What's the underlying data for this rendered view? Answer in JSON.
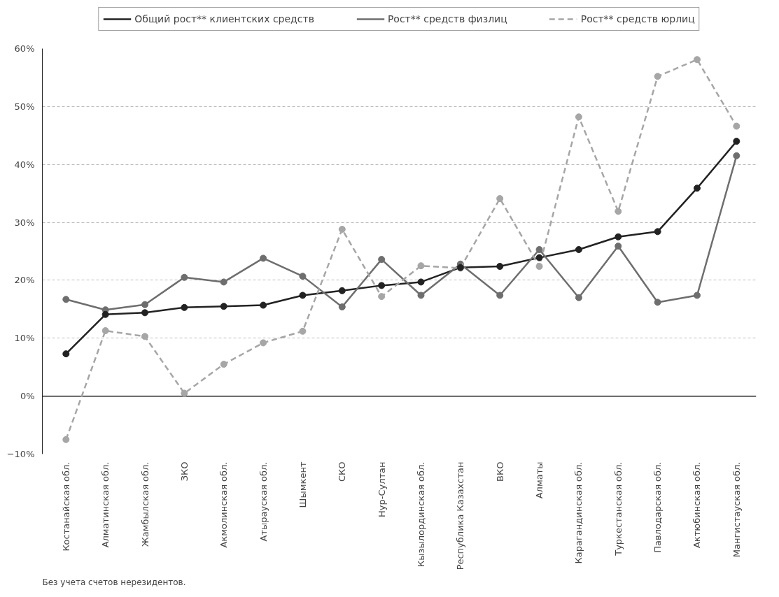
{
  "chart_data": {
    "type": "line",
    "categories": [
      "Костанайская обл.",
      "Алматинская обл.",
      "Жамбылская обл.",
      "ЗКО",
      "Акмолинская обл.",
      "Атырауская обл.",
      "Шымкент",
      "СКО",
      "Нур-Султан",
      "Кызылординская обл.",
      "Республика Казахстан",
      "ВКО",
      "Алматы",
      "Карагандинская обл.",
      "Туркестанская обл.",
      "Павлодарская обл.",
      "Актюбинская обл.",
      "Мангистауская обл."
    ],
    "series": [
      {
        "name": "Общий рост** клиентских средств",
        "color": "#222222",
        "line_style": "solid",
        "values": [
          7.3,
          14.1,
          14.4,
          15.3,
          15.5,
          15.7,
          17.4,
          18.2,
          19.1,
          19.7,
          22.2,
          22.4,
          23.9,
          25.3,
          27.5,
          28.4,
          35.9,
          44.0
        ]
      },
      {
        "name": "Рост** средств физлиц",
        "color": "#6e6e6e",
        "line_style": "solid",
        "values": [
          16.7,
          14.9,
          15.8,
          20.5,
          19.7,
          23.8,
          20.7,
          15.4,
          23.6,
          17.4,
          22.8,
          17.4,
          25.3,
          17.0,
          25.9,
          16.2,
          17.4,
          41.5
        ]
      },
      {
        "name": "Рост** средств юрлиц",
        "color": "#a6a6a6",
        "line_style": "dashed",
        "values": [
          -7.5,
          11.3,
          10.3,
          0.5,
          5.5,
          9.2,
          11.2,
          28.8,
          17.2,
          22.5,
          22.1,
          34.1,
          22.4,
          48.2,
          31.9,
          55.2,
          58.1,
          46.6
        ]
      }
    ],
    "ylim": [
      -10,
      60
    ],
    "yticks": [
      {
        "value": -10,
        "label": "−10%"
      },
      {
        "value": 0,
        "label": "0%"
      },
      {
        "value": 10,
        "label": "10%"
      },
      {
        "value": 20,
        "label": "20%"
      },
      {
        "value": 30,
        "label": "30%"
      },
      {
        "value": 40,
        "label": "40%"
      },
      {
        "value": 50,
        "label": "50%"
      },
      {
        "value": 60,
        "label": "60%"
      }
    ],
    "grid": "y",
    "legend": "top",
    "marker": "circle",
    "ref_lines": [
      {
        "axis": "y",
        "value": 0,
        "color": "#222222"
      }
    ],
    "annotations": [
      "Без учета счетов нерезидентов."
    ]
  }
}
